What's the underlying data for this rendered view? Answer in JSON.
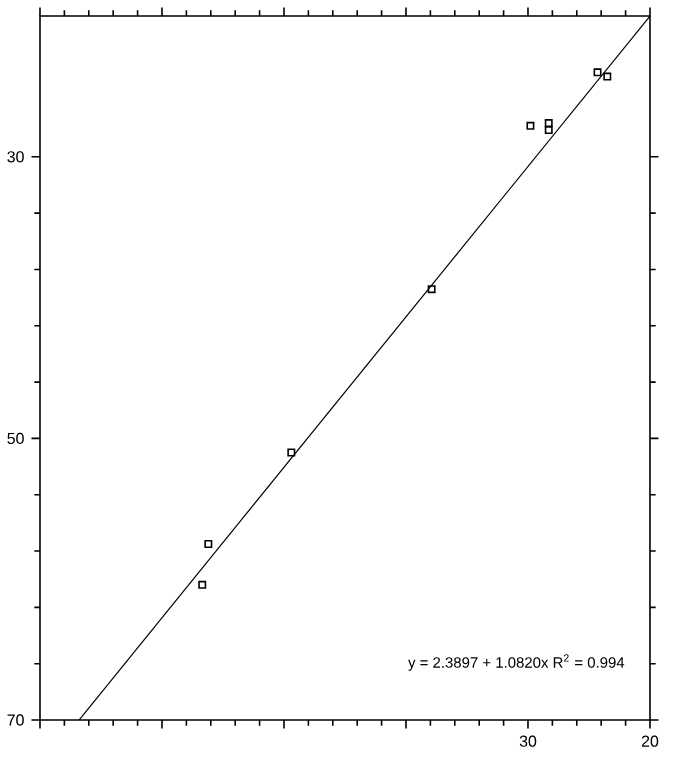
{
  "chart_data": {
    "type": "scatter",
    "xlim": [
      70,
      20
    ],
    "ylim": [
      70,
      20
    ],
    "xticks": [
      {
        "value": 70,
        "label": null
      },
      {
        "value": 60,
        "label": null
      },
      {
        "value": 50,
        "label": null
      },
      {
        "value": 40,
        "label": null
      },
      30,
      20
    ],
    "yticks": [
      30,
      50,
      70
    ],
    "marker": "square",
    "grid": false,
    "series": [
      {
        "color": "#000000",
        "x": [
          56.7,
          56.2,
          49.4,
          37.9,
          29.8,
          28.3,
          28.3,
          24.3,
          23.5
        ],
        "values": [
          60.4,
          57.5,
          51.0,
          39.4,
          27.8,
          27.6,
          28.1,
          24.0,
          24.3
        ]
      },
      {
        "type": "line",
        "color": "#000000",
        "marker": "none",
        "x": [
          66.8,
          20
        ],
        "values": [
          70,
          20
        ]
      }
    ],
    "annotations": [
      "y = 2.3897 + 1.0820x      R$^{2}$ = 0.994"
    ]
  }
}
